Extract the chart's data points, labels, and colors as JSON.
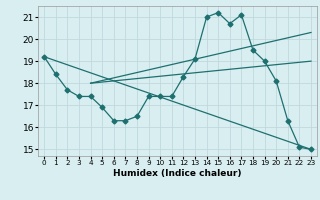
{
  "xlabel": "Humidex (Indice chaleur)",
  "xlim": [
    -0.5,
    23.5
  ],
  "ylim": [
    14.7,
    21.5
  ],
  "yticks": [
    15,
    16,
    17,
    18,
    19,
    20,
    21
  ],
  "xticks": [
    0,
    1,
    2,
    3,
    4,
    5,
    6,
    7,
    8,
    9,
    10,
    11,
    12,
    13,
    14,
    15,
    16,
    17,
    18,
    19,
    20,
    21,
    22,
    23
  ],
  "bg_color": "#d9eef1",
  "grid_color": "#c0d8dc",
  "line_color": "#1e7070",
  "curve": {
    "x": [
      0,
      1,
      2,
      3,
      4,
      5,
      6,
      7,
      8,
      9,
      10,
      11,
      12,
      13,
      14,
      15,
      16,
      17,
      18,
      19,
      20,
      21,
      22,
      23
    ],
    "y": [
      19.2,
      18.4,
      17.7,
      17.4,
      17.4,
      16.9,
      16.3,
      16.3,
      16.5,
      17.4,
      17.4,
      17.4,
      18.3,
      19.1,
      21.0,
      21.2,
      20.7,
      21.1,
      19.5,
      19.0,
      18.1,
      16.3,
      15.1,
      15.0
    ]
  },
  "line_diag": {
    "x": [
      0,
      23
    ],
    "y": [
      19.2,
      15.0
    ]
  },
  "line_upper": {
    "x": [
      4,
      23
    ],
    "y": [
      18.0,
      20.3
    ]
  },
  "line_lower": {
    "x": [
      4,
      23
    ],
    "y": [
      18.0,
      19.0
    ]
  }
}
